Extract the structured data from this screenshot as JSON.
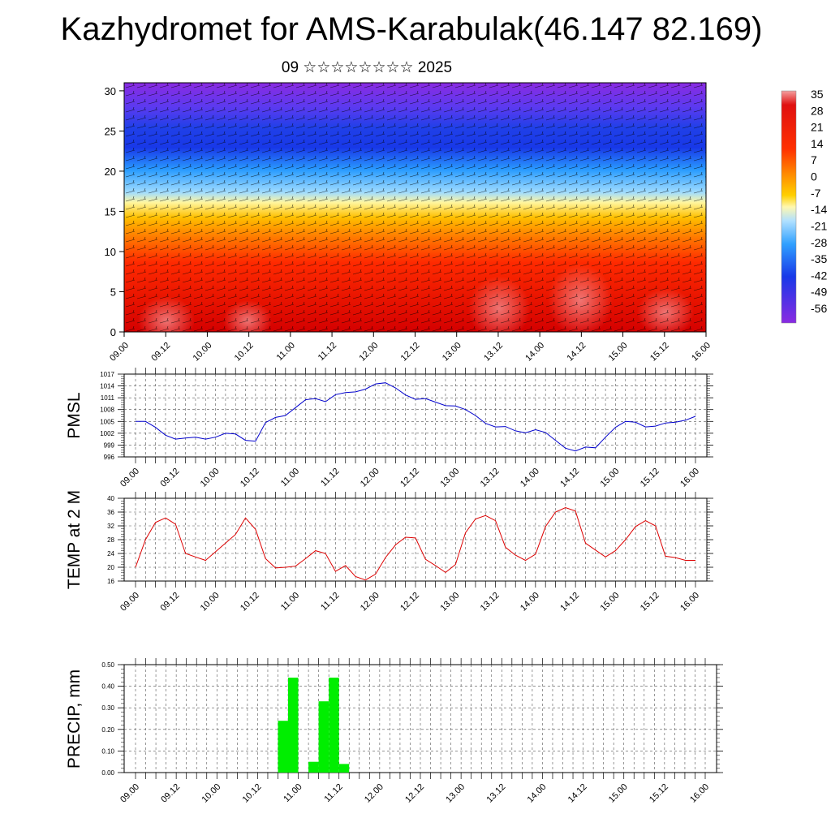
{
  "header": {
    "title": "Kazhydromet for AMS-Karabulak(46.147 82.169)",
    "subtitle": "09 ☆☆☆☆☆☆☆☆ 2025"
  },
  "chart_data": [
    {
      "type": "heatmap",
      "description_scope": "temperature cross-section with wind barbs",
      "x_ticks": [
        "09.00",
        "09.12",
        "10.00",
        "10.12",
        "11.00",
        "11.12",
        "12.00",
        "12.12",
        "13.00",
        "13.12",
        "14.00",
        "14.12",
        "15.00",
        "15.12",
        "16.00"
      ],
      "y_ticks": [
        0,
        5,
        10,
        15,
        20,
        25,
        30
      ],
      "ylim": [
        0,
        31
      ],
      "colorbar_labels": [
        "35",
        "28",
        "21",
        "14",
        "7",
        "0",
        "-7",
        "-14",
        "-21",
        "-28",
        "-35",
        "-42",
        "-49",
        "-56"
      ],
      "colorbar_range": [
        -60,
        38
      ],
      "colors": {
        "hot": "#e00000",
        "warm": "#ff7a00",
        "mild": "#ffe030",
        "cool": "#60c0ff",
        "cold": "#1830e0",
        "coldest": "#8a2be2"
      }
    },
    {
      "type": "line",
      "ylabel": "PMSL",
      "ylim": [
        996,
        1017
      ],
      "y_ticks": [
        996,
        999,
        1002,
        1005,
        1008,
        1011,
        1014,
        1017
      ],
      "x_ticks": [
        "09.00",
        "09.12",
        "10.00",
        "10.12",
        "11.00",
        "11.12",
        "12.00",
        "12.12",
        "13.00",
        "13.12",
        "14.00",
        "14.12",
        "15.00",
        "15.12",
        "16.00"
      ],
      "step_hours": 3,
      "color": "#0000cc",
      "values": [
        1005,
        1005,
        1003.5,
        1001.5,
        1000.5,
        1000.8,
        1001,
        1000.5,
        1001,
        1002,
        1001.8,
        1000.2,
        1000,
        1004.7,
        1006,
        1006.5,
        1008.5,
        1010.5,
        1010.8,
        1010,
        1011.8,
        1012.3,
        1012.5,
        1013.2,
        1014.5,
        1014.8,
        1013.5,
        1011.7,
        1010.6,
        1010.8,
        1009.9,
        1009,
        1008.9,
        1008,
        1006.5,
        1004.5,
        1003.6,
        1003.7,
        1002.6,
        1002.1,
        1002.9,
        1002.2,
        1000.2,
        998.2,
        997.5,
        998.5,
        998.3,
        1001,
        1003.5,
        1005,
        1004.8,
        1003.6,
        1003.8,
        1004.6,
        1004.8,
        1005.3,
        1006.3
      ]
    },
    {
      "type": "line",
      "ylabel": "TEMP at 2 M",
      "ylim": [
        16,
        40
      ],
      "y_ticks": [
        16,
        20,
        24,
        28,
        32,
        36,
        40
      ],
      "x_ticks": [
        "09.00",
        "09.12",
        "10.00",
        "10.12",
        "11.00",
        "11.12",
        "12.00",
        "12.12",
        "13.00",
        "13.12",
        "14.00",
        "14.12",
        "15.00",
        "15.12",
        "16.00"
      ],
      "step_hours": 3,
      "color": "#dd0000",
      "values": [
        20,
        28,
        33,
        34.3,
        32.5,
        24,
        23,
        22,
        24.5,
        27,
        29.5,
        34.3,
        31,
        22.5,
        19.8,
        20,
        20.3,
        22.5,
        24.8,
        24,
        18.8,
        20.5,
        17.3,
        16.3,
        18,
        22.8,
        26.5,
        28.7,
        28.5,
        22.3,
        20.5,
        18.5,
        20.8,
        30,
        34,
        35,
        33.5,
        25.8,
        23.5,
        22,
        23.8,
        31.8,
        36,
        37.3,
        36.3,
        27,
        25,
        23,
        24.8,
        28,
        31.8,
        33.5,
        32,
        23.2,
        22.8,
        22,
        22
      ]
    },
    {
      "type": "bar",
      "ylabel": "PRECIP, mm",
      "ylim": [
        0,
        0.5
      ],
      "y_ticks": [
        "0.00",
        "0.10",
        "0.20",
        "0.30",
        "0.40",
        "0.50"
      ],
      "x_ticks": [
        "09.00",
        "09.12",
        "10.00",
        "10.12",
        "11.00",
        "11.12",
        "12.00",
        "12.12",
        "13.00",
        "13.12",
        "14.00",
        "14.12",
        "15.00",
        "15.12",
        "16.00"
      ],
      "step_hours": 3,
      "color": "#00ee00",
      "bars": [
        {
          "hour": 45,
          "value": 0.24
        },
        {
          "hour": 48,
          "value": 0.44
        },
        {
          "hour": 54,
          "value": 0.05
        },
        {
          "hour": 57,
          "value": 0.33
        },
        {
          "hour": 60,
          "value": 0.44
        },
        {
          "hour": 63,
          "value": 0.04
        }
      ]
    }
  ]
}
